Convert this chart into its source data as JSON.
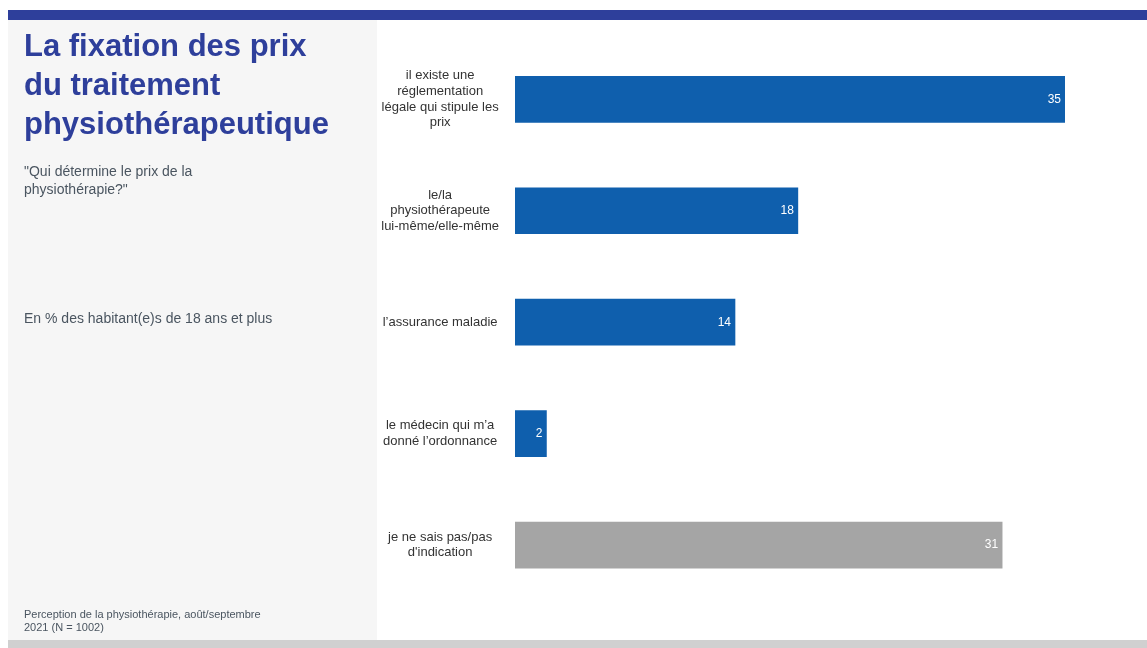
{
  "chart_data": {
    "type": "bar",
    "orientation": "horizontal",
    "title": "La fixation des prix du traitement physiothérapeutique",
    "subtitle": "\"Qui détermine le prix de la physiothérapie?\"",
    "annotations": [
      "En % des habitant(e)s de 18 ans et plus",
      "Perception de la physiothérapie, août/septembre 2021 (N = 1002)"
    ],
    "categories": [
      "il existe une réglementation légale qui stipule les prix",
      "le/la physiothérapeute lui-même/elle-même",
      "l’assurance maladie",
      "le médecin qui m’a donné l’ordonnance",
      "je ne sais pas/pas d'indication"
    ],
    "values": [
      35,
      18,
      14,
      2,
      31
    ],
    "colors": [
      "#0f5fad",
      "#0f5fad",
      "#0f5fad",
      "#0f5fad",
      "#a5a5a5"
    ],
    "xlim": [
      0,
      35
    ],
    "data_labels": true
  }
}
